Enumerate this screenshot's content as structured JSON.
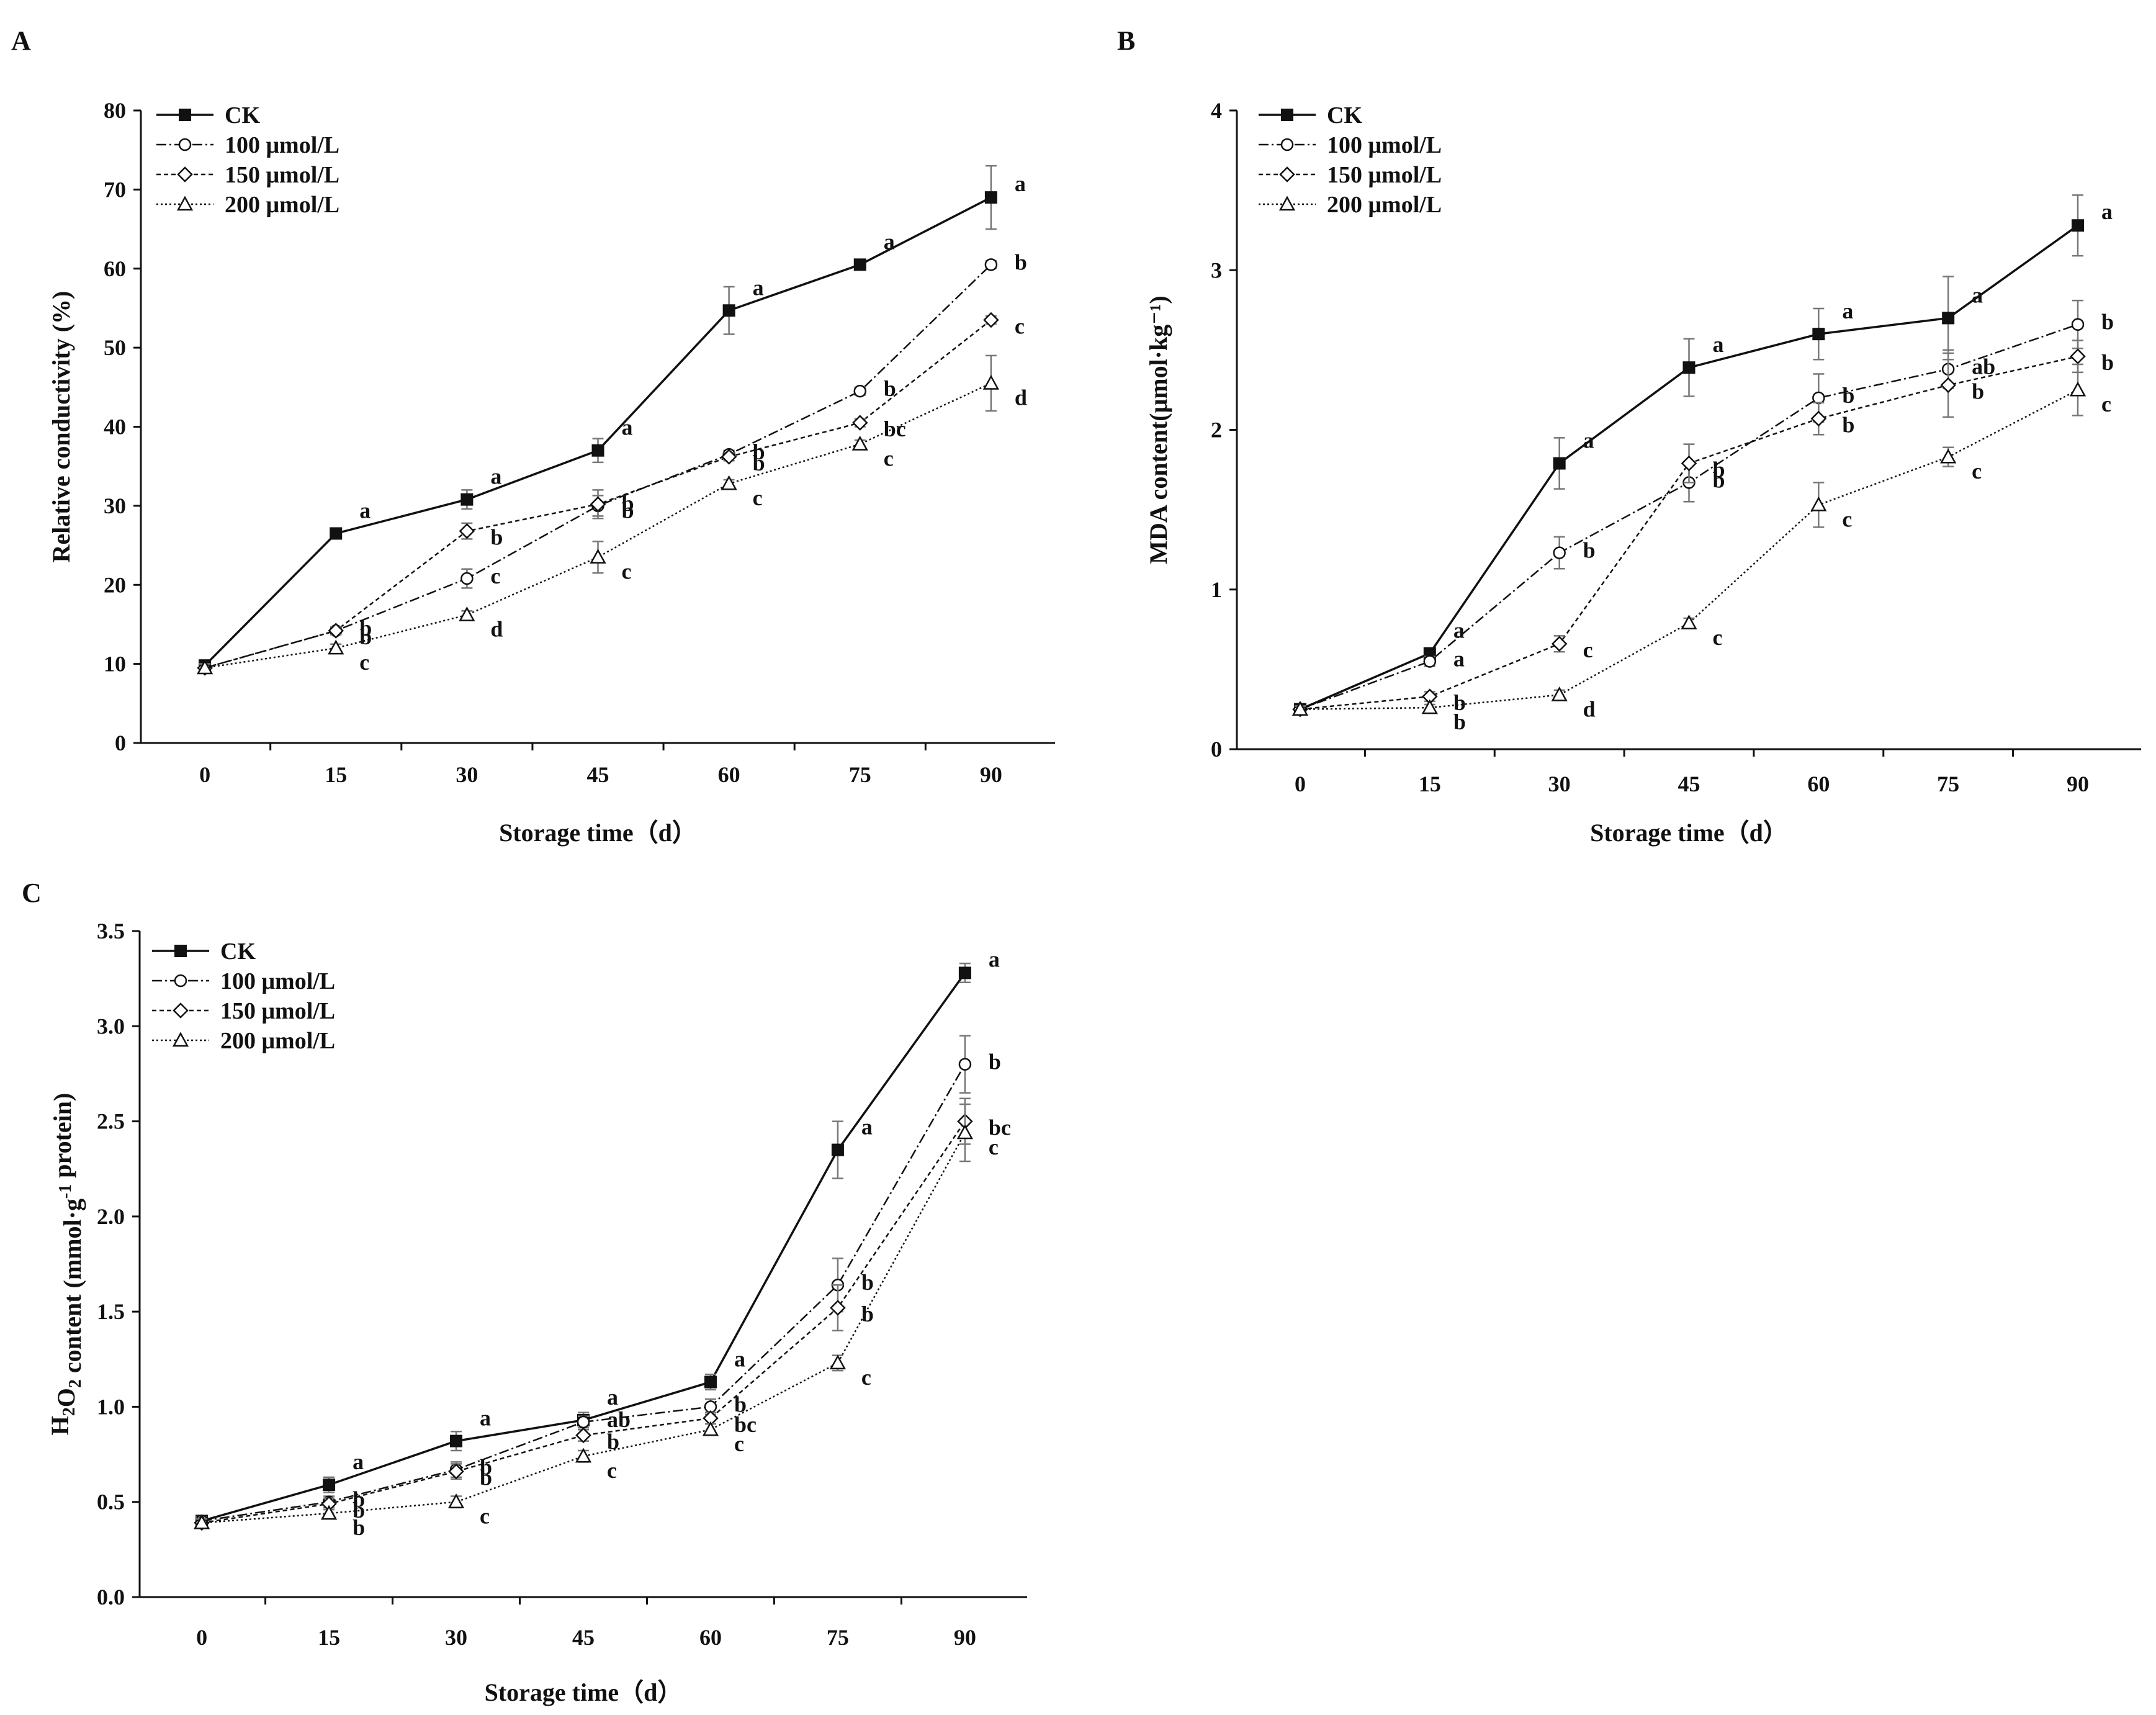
{
  "figure": {
    "panels": [
      "A",
      "B",
      "C"
    ]
  },
  "legend_labels": [
    "CK",
    "100 μmol/L",
    "150 μmol/L",
    "200 μmol/L"
  ],
  "chart_data": [
    {
      "id": "A",
      "type": "line",
      "panel_label": "A",
      "title": "",
      "xlabel": "Storage time（d）",
      "ylabel": "Relative conductivity (%)",
      "x": [
        0,
        15,
        30,
        45,
        60,
        75,
        90
      ],
      "x_ticks": [
        "0",
        "15",
        "30",
        "45",
        "60",
        "75",
        "90"
      ],
      "ylim": [
        0,
        80
      ],
      "y_ticks": [
        "0",
        "10",
        "20",
        "30",
        "40",
        "50",
        "60",
        "70",
        "80"
      ],
      "legend": [
        "CK",
        "100 μmol/L",
        "150 μmol/L",
        "200 μmol/L"
      ],
      "series": [
        {
          "name": "CK",
          "values": [
            9.8,
            26.5,
            30.8,
            37.0,
            54.7,
            60.5,
            69.0
          ],
          "errors": [
            0.5,
            0.5,
            1.2,
            1.5,
            3.0,
            0.3,
            4.0
          ],
          "letters": [
            "",
            "a",
            "a",
            "a",
            "a",
            "a",
            "a"
          ]
        },
        {
          "name": "100 μmol/L",
          "values": [
            9.5,
            14.2,
            20.8,
            30.0,
            36.5,
            44.5,
            60.5
          ],
          "errors": [
            0.5,
            0.5,
            1.2,
            1.3,
            0.5,
            0.5,
            0.5
          ],
          "letters": [
            "",
            "b",
            "c",
            "b",
            "b",
            "b",
            "b"
          ]
        },
        {
          "name": "150 μmol/L",
          "values": [
            9.5,
            14.2,
            26.8,
            30.2,
            36.2,
            40.5,
            53.5
          ],
          "errors": [
            0.5,
            0.5,
            1.0,
            1.8,
            0.5,
            0.5,
            0.5
          ],
          "letters": [
            "",
            "b",
            "b",
            "b",
            "b",
            "bc",
            "c"
          ]
        },
        {
          "name": "200 μmol/L",
          "values": [
            9.5,
            12.0,
            16.2,
            23.5,
            32.8,
            37.8,
            45.5
          ],
          "errors": [
            0.5,
            0.5,
            0.5,
            2.0,
            0.5,
            0.5,
            3.5
          ],
          "letters": [
            "",
            "c",
            "d",
            "c",
            "c",
            "c",
            "d"
          ]
        }
      ]
    },
    {
      "id": "B",
      "type": "line",
      "panel_label": "B",
      "title": "",
      "xlabel": "Storage time（d）",
      "ylabel": "MDA content(μmol·kg⁻¹)",
      "x": [
        0,
        15,
        30,
        45,
        60,
        75,
        90
      ],
      "x_ticks": [
        "0",
        "15",
        "30",
        "45",
        "60",
        "75",
        "90"
      ],
      "ylim": [
        0,
        4
      ],
      "y_ticks": [
        "0",
        "1",
        "2",
        "3",
        "4"
      ],
      "legend": [
        "CK",
        "100 μmol/L",
        "150 μmol/L",
        "200 μmol/L"
      ],
      "series": [
        {
          "name": "CK",
          "values": [
            0.25,
            0.6,
            1.79,
            2.39,
            2.6,
            2.7,
            3.28
          ],
          "errors": [
            0.02,
            0.03,
            0.16,
            0.18,
            0.16,
            0.26,
            0.19
          ],
          "letters": [
            "",
            "a",
            "a",
            "a",
            "a",
            "a",
            "a"
          ]
        },
        {
          "name": "100 μmol/L",
          "values": [
            0.25,
            0.55,
            1.23,
            1.67,
            2.2,
            2.38,
            2.66
          ],
          "errors": [
            0.02,
            0.03,
            0.1,
            0.12,
            0.15,
            0.12,
            0.15
          ],
          "letters": [
            "",
            "a",
            "b",
            "b",
            "b",
            "ab",
            "b"
          ]
        },
        {
          "name": "150 μmol/L",
          "values": [
            0.25,
            0.33,
            0.66,
            1.79,
            2.07,
            2.28,
            2.46
          ],
          "errors": [
            0.02,
            0.03,
            0.05,
            0.12,
            0.1,
            0.2,
            0.1
          ],
          "letters": [
            "",
            "b",
            "c",
            "b",
            "b",
            "b",
            "b"
          ]
        },
        {
          "name": "200 μmol/L",
          "values": [
            0.25,
            0.26,
            0.34,
            0.79,
            1.53,
            1.83,
            2.25
          ],
          "errors": [
            0.02,
            0.02,
            0.03,
            0.03,
            0.14,
            0.06,
            0.16
          ],
          "letters": [
            "",
            "b",
            "d",
            "c",
            "c",
            "c",
            "c"
          ]
        }
      ]
    },
    {
      "id": "C",
      "type": "line",
      "panel_label": "C",
      "title": "",
      "xlabel": "Storage time（d）",
      "ylabel": "H2O2 content (mmol·g-1 protein)",
      "x": [
        0,
        15,
        30,
        45,
        60,
        75,
        90
      ],
      "x_ticks": [
        "0",
        "15",
        "30",
        "45",
        "60",
        "75",
        "90"
      ],
      "ylim": [
        0,
        3.5
      ],
      "y_ticks": [
        "0.0",
        "0.5",
        "1.0",
        "1.5",
        "2.0",
        "2.5",
        "3.0",
        "3.5"
      ],
      "legend": [
        "CK",
        "100 μmol/L",
        "150 μmol/L",
        "200 μmol/L"
      ],
      "series": [
        {
          "name": "CK",
          "values": [
            0.4,
            0.59,
            0.82,
            0.93,
            1.13,
            2.35,
            3.28
          ],
          "errors": [
            0.02,
            0.04,
            0.05,
            0.04,
            0.04,
            0.15,
            0.05
          ],
          "letters": [
            "",
            "a",
            "a",
            "a",
            "a",
            "a",
            "a"
          ]
        },
        {
          "name": "100 μmol/L",
          "values": [
            0.4,
            0.5,
            0.67,
            0.92,
            1.0,
            1.64,
            2.8
          ],
          "errors": [
            0.02,
            0.03,
            0.04,
            0.03,
            0.04,
            0.14,
            0.15
          ],
          "letters": [
            "",
            "b",
            "b",
            "ab",
            "b",
            "b",
            "b"
          ]
        },
        {
          "name": "150 μmol/L",
          "values": [
            0.39,
            0.49,
            0.66,
            0.85,
            0.94,
            1.52,
            2.5
          ],
          "errors": [
            0.02,
            0.03,
            0.04,
            0.03,
            0.03,
            0.12,
            0.12
          ],
          "letters": [
            "",
            "b",
            "b",
            "b",
            "bc",
            "b",
            "bc"
          ]
        },
        {
          "name": "200 μmol/L",
          "values": [
            0.39,
            0.44,
            0.5,
            0.74,
            0.88,
            1.23,
            2.44
          ],
          "errors": [
            0.02,
            0.02,
            0.03,
            0.03,
            0.03,
            0.04,
            0.15
          ],
          "letters": [
            "",
            "b",
            "c",
            "c",
            "c",
            "c",
            "c"
          ]
        }
      ]
    }
  ]
}
